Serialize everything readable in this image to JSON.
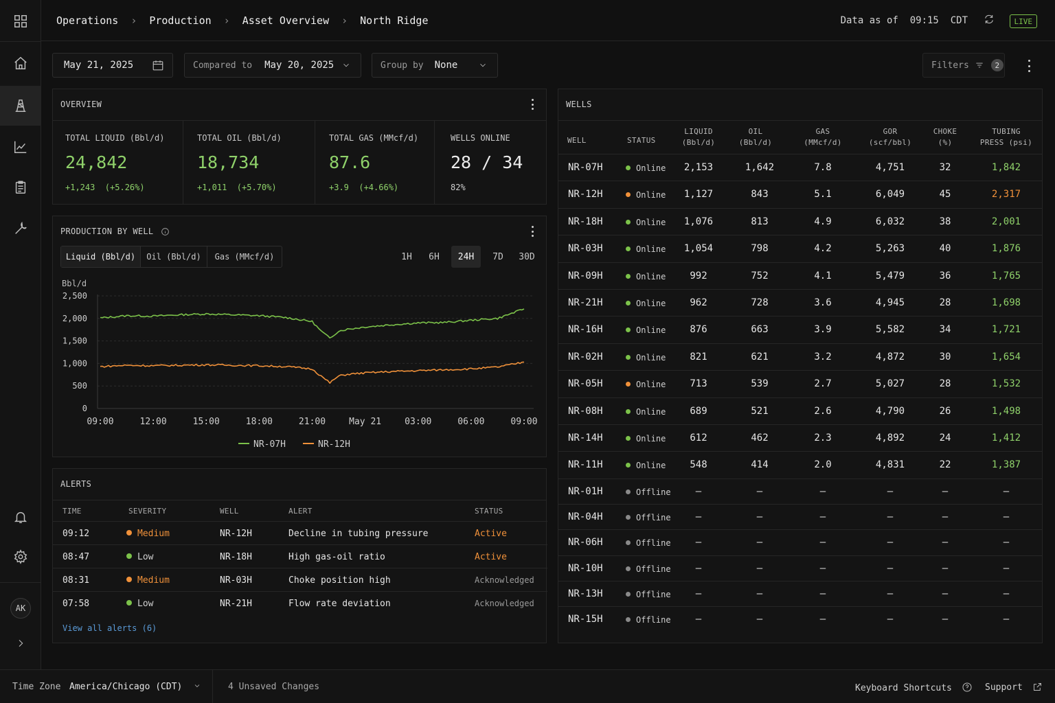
{
  "breadcrumb": [
    "Operations",
    "Production",
    "Asset Overview",
    "North Ridge"
  ],
  "header": {
    "data_as_of": "Data as of  09:15  CDT",
    "live": "LIVE"
  },
  "toolbar": {
    "date": "May 21, 2025",
    "compared_label": "Compared to",
    "compared_value": "May 20, 2025",
    "group_label": "Group by",
    "group_value": "None",
    "filters_label": "Filters",
    "filters_count": "2"
  },
  "overview": {
    "title": "OVERVIEW",
    "kpis": [
      {
        "label": "TOTAL LIQUID (Bbl/d)",
        "value": "24,842",
        "delta": "+1,243  (+5.26%)"
      },
      {
        "label": "TOTAL OIL (Bbl/d)",
        "value": "18,734",
        "delta": "+1,011  (+5.70%)"
      },
      {
        "label": "TOTAL GAS (MMcf/d)",
        "value": "87.6",
        "delta": "+3.9  (+4.66%)"
      },
      {
        "label": "WELLS ONLINE",
        "value": "28 / 34",
        "delta": "82%"
      }
    ]
  },
  "production": {
    "title": "PRODUCTION BY WELL",
    "metrics": [
      "Liquid (Bbl/d)",
      "Oil (Bbl/d)",
      "Gas (MMcf/d)"
    ],
    "active_metric": 0,
    "ranges": [
      "1H",
      "6H",
      "24H",
      "7D",
      "30D"
    ],
    "active_range": 2
  },
  "chart_data": {
    "type": "line",
    "ylabel": "Bbl/d",
    "ylim": [
      0,
      2500
    ],
    "yticks": [
      "2,500",
      "2,000",
      "1,500",
      "1,000",
      "500",
      "0"
    ],
    "xticks": [
      "09:00",
      "12:00",
      "15:00",
      "18:00",
      "21:00",
      "May 21",
      "03:00",
      "06:00",
      "09:00"
    ],
    "x": [
      "09:00",
      "10:30",
      "12:00",
      "13:30",
      "15:00",
      "16:30",
      "18:00",
      "19:30",
      "21:00",
      "21:30",
      "22:00",
      "22:30",
      "23:00",
      "00:00",
      "01:30",
      "03:00",
      "04:30",
      "06:00",
      "07:30",
      "09:00"
    ],
    "series": [
      {
        "name": "NR-07H",
        "color": "#7cc24a",
        "values": [
          2010,
          2060,
          2050,
          2080,
          2100,
          2080,
          2060,
          2020,
          1930,
          1720,
          1560,
          1720,
          1760,
          1810,
          1860,
          1900,
          1910,
          1960,
          2000,
          2210
        ]
      },
      {
        "name": "NR-12H",
        "color": "#f0913a",
        "values": [
          930,
          960,
          950,
          960,
          970,
          960,
          950,
          930,
          880,
          720,
          570,
          720,
          760,
          790,
          820,
          840,
          860,
          880,
          920,
          1030
        ]
      }
    ],
    "legend_position": "bottom-center"
  },
  "alerts": {
    "title": "ALERTS",
    "columns": [
      "TIME",
      "SEVERITY",
      "WELL",
      "ALERT",
      "STATUS"
    ],
    "rows": [
      {
        "time": "09:12",
        "severity": "Medium",
        "well": "NR-12H",
        "alert": "Decline in tubing pressure",
        "status": "Active"
      },
      {
        "time": "08:47",
        "severity": "Low",
        "well": "NR-18H",
        "alert": "High gas-oil ratio",
        "status": "Active"
      },
      {
        "time": "08:31",
        "severity": "Medium",
        "well": "NR-03H",
        "alert": "Choke position high",
        "status": "Acknowledged"
      },
      {
        "time": "07:58",
        "severity": "Low",
        "well": "NR-21H",
        "alert": "Flow rate deviation",
        "status": "Acknowledged"
      }
    ],
    "view_all": "View all alerts (6)"
  },
  "wells": {
    "title": "WELLS",
    "columns": [
      [
        "WELL"
      ],
      [
        "STATUS"
      ],
      [
        "LIQUID",
        "(Bbl/d)"
      ],
      [
        "OIL",
        "(Bbl/d)"
      ],
      [
        "GAS",
        "(MMcf/d)"
      ],
      [
        "GOR",
        "(scf/bbl)"
      ],
      [
        "CHOKE",
        "(%)"
      ],
      [
        "TUBING",
        "PRESS (psi)"
      ]
    ],
    "rows": [
      {
        "well": "NR-07H",
        "status": "Online",
        "dot": "green",
        "liquid": "2,153",
        "oil": "1,642",
        "gas": "7.8",
        "gor": "4,751",
        "choke": "32",
        "press": "1,842",
        "press_color": "green"
      },
      {
        "well": "NR-12H",
        "status": "Online",
        "dot": "orange",
        "liquid": "1,127",
        "oil": "843",
        "gas": "5.1",
        "gor": "6,049",
        "choke": "45",
        "press": "2,317",
        "press_color": "orange"
      },
      {
        "well": "NR-18H",
        "status": "Online",
        "dot": "green",
        "liquid": "1,076",
        "oil": "813",
        "gas": "4.9",
        "gor": "6,032",
        "choke": "38",
        "press": "2,001",
        "press_color": "green"
      },
      {
        "well": "NR-03H",
        "status": "Online",
        "dot": "green",
        "liquid": "1,054",
        "oil": "798",
        "gas": "4.2",
        "gor": "5,263",
        "choke": "40",
        "press": "1,876",
        "press_color": "green"
      },
      {
        "well": "NR-09H",
        "status": "Online",
        "dot": "green",
        "liquid": "992",
        "oil": "752",
        "gas": "4.1",
        "gor": "5,479",
        "choke": "36",
        "press": "1,765",
        "press_color": "green"
      },
      {
        "well": "NR-21H",
        "status": "Online",
        "dot": "green",
        "liquid": "962",
        "oil": "728",
        "gas": "3.6",
        "gor": "4,945",
        "choke": "28",
        "press": "1,698",
        "press_color": "green"
      },
      {
        "well": "NR-16H",
        "status": "Online",
        "dot": "green",
        "liquid": "876",
        "oil": "663",
        "gas": "3.9",
        "gor": "5,582",
        "choke": "34",
        "press": "1,721",
        "press_color": "green"
      },
      {
        "well": "NR-02H",
        "status": "Online",
        "dot": "green",
        "liquid": "821",
        "oil": "621",
        "gas": "3.2",
        "gor": "4,872",
        "choke": "30",
        "press": "1,654",
        "press_color": "green"
      },
      {
        "well": "NR-05H",
        "status": "Online",
        "dot": "orange",
        "liquid": "713",
        "oil": "539",
        "gas": "2.7",
        "gor": "5,027",
        "choke": "28",
        "press": "1,532",
        "press_color": "green"
      },
      {
        "well": "NR-08H",
        "status": "Online",
        "dot": "green",
        "liquid": "689",
        "oil": "521",
        "gas": "2.6",
        "gor": "4,790",
        "choke": "26",
        "press": "1,498",
        "press_color": "green"
      },
      {
        "well": "NR-14H",
        "status": "Online",
        "dot": "green",
        "liquid": "612",
        "oil": "462",
        "gas": "2.3",
        "gor": "4,892",
        "choke": "24",
        "press": "1,412",
        "press_color": "green"
      },
      {
        "well": "NR-11H",
        "status": "Online",
        "dot": "green",
        "liquid": "548",
        "oil": "414",
        "gas": "2.0",
        "gor": "4,831",
        "choke": "22",
        "press": "1,387",
        "press_color": "green"
      },
      {
        "well": "NR-01H",
        "status": "Offline",
        "dot": "gray",
        "liquid": "—",
        "oil": "—",
        "gas": "—",
        "gor": "—",
        "choke": "—",
        "press": "—",
        "press_color": "none"
      },
      {
        "well": "NR-04H",
        "status": "Offline",
        "dot": "gray",
        "liquid": "—",
        "oil": "—",
        "gas": "—",
        "gor": "—",
        "choke": "—",
        "press": "—",
        "press_color": "none"
      },
      {
        "well": "NR-06H",
        "status": "Offline",
        "dot": "gray",
        "liquid": "—",
        "oil": "—",
        "gas": "—",
        "gor": "—",
        "choke": "—",
        "press": "—",
        "press_color": "none"
      },
      {
        "well": "NR-10H",
        "status": "Offline",
        "dot": "gray",
        "liquid": "—",
        "oil": "—",
        "gas": "—",
        "gor": "—",
        "choke": "—",
        "press": "—",
        "press_color": "none"
      },
      {
        "well": "NR-13H",
        "status": "Offline",
        "dot": "gray",
        "liquid": "—",
        "oil": "—",
        "gas": "—",
        "gor": "—",
        "choke": "—",
        "press": "—",
        "press_color": "none"
      },
      {
        "well": "NR-15H",
        "status": "Offline",
        "dot": "gray",
        "liquid": "—",
        "oil": "—",
        "gas": "—",
        "gor": "—",
        "choke": "—",
        "press": "—",
        "press_color": "none"
      }
    ]
  },
  "sidebar": {
    "icons": [
      "grid-icon",
      "home-icon",
      "oil-rig-icon",
      "chart-icon",
      "clipboard-icon",
      "wrench-icon",
      "bell-icon",
      "gear-icon",
      "chevron-right-icon"
    ],
    "avatar": "AK"
  },
  "footer": {
    "tz_label": "Time Zone",
    "tz_value": "America/Chicago (CDT)",
    "unsaved": "4 Unsaved Changes",
    "shortcuts": "Keyboard Shortcuts",
    "support": "Support"
  },
  "colors": {
    "green": "#7cc24a",
    "orange": "#f0913a",
    "gray": "#8a8a8a",
    "link": "#5b9bd8"
  }
}
